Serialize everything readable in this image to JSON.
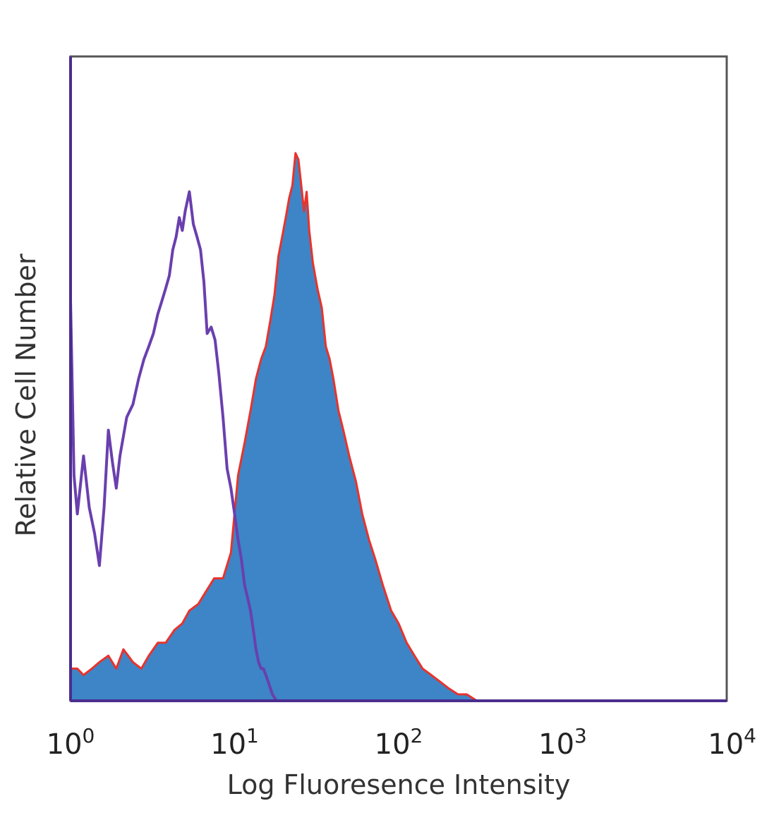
{
  "chart_data": {
    "type": "area",
    "title": "",
    "xlabel": "Log Fluoresence Intensity",
    "ylabel": "Relative Cell Number",
    "x_scale": "log",
    "xlim": [
      1,
      10000
    ],
    "ylim": [
      0,
      100
    ],
    "grid": false,
    "legend": "none",
    "x_ticks": [
      {
        "base": "10",
        "exp": "0"
      },
      {
        "base": "10",
        "exp": "1"
      },
      {
        "base": "10",
        "exp": "2"
      },
      {
        "base": "10",
        "exp": "3"
      },
      {
        "base": "10",
        "exp": "4"
      }
    ],
    "series": [
      {
        "style": "filled",
        "fill_color": "#3d85c6",
        "edge_color": "#e8332c",
        "x": [
          1.0,
          1.1,
          1.2,
          1.35,
          1.5,
          1.7,
          1.9,
          2.1,
          2.4,
          2.7,
          3.0,
          3.4,
          3.8,
          4.3,
          4.8,
          5.3,
          6.0,
          6.7,
          7.5,
          8.5,
          9.5,
          10.5,
          11.5,
          12.5,
          13.5,
          14.5,
          15.5,
          16.5,
          17.5,
          18.5,
          19.5,
          20.5,
          21.5,
          22.5,
          23.5,
          24.5,
          25.5,
          26.5,
          27.5,
          28.5,
          30.0,
          32.0,
          34.0,
          36.0,
          38.0,
          40.0,
          43.0,
          46.0,
          50.0,
          55.0,
          60.0,
          66.0,
          72.0,
          80.0,
          90.0,
          100.0,
          112.0,
          125.0,
          140.0,
          158.0,
          178.0,
          200.0,
          230.0,
          260.0,
          300.0,
          320.0
        ],
        "y": [
          5,
          5,
          4,
          5,
          6,
          7,
          5,
          8,
          6,
          5,
          7,
          9,
          9,
          11,
          12,
          14,
          15,
          17,
          19,
          19,
          23,
          35,
          40,
          45,
          50,
          53,
          55,
          59,
          63,
          69,
          72,
          75,
          78,
          80,
          85,
          84,
          80,
          76,
          79,
          73,
          68,
          64,
          61,
          55,
          53,
          50,
          45,
          42,
          38,
          34,
          29,
          25,
          22,
          18,
          14,
          12,
          9,
          7,
          5,
          4,
          3,
          2,
          1,
          1,
          0,
          0
        ]
      },
      {
        "style": "outline",
        "edge_color": "#6a3fae",
        "x": [
          1.0,
          1.05,
          1.1,
          1.2,
          1.3,
          1.4,
          1.5,
          1.6,
          1.7,
          1.8,
          1.9,
          2.0,
          2.2,
          2.4,
          2.6,
          2.8,
          3.0,
          3.2,
          3.4,
          3.6,
          3.8,
          4.0,
          4.2,
          4.4,
          4.6,
          4.8,
          5.0,
          5.3,
          5.6,
          5.9,
          6.2,
          6.5,
          6.8,
          7.2,
          7.6,
          8.0,
          8.5,
          9.0,
          9.5,
          10.0,
          10.5,
          11.0,
          11.5,
          12.0,
          12.5,
          13.0,
          13.5,
          14.0,
          14.5,
          15.0,
          15.5,
          16.0,
          17.0,
          18.0,
          20.0,
          23.0,
          25.0
        ],
        "y": [
          62,
          35,
          29,
          38,
          30,
          26,
          21,
          30,
          42,
          37,
          33,
          38,
          44,
          46,
          50,
          53,
          55,
          57,
          60,
          62,
          64,
          66,
          70,
          72,
          75,
          73,
          76,
          79,
          74,
          72,
          70,
          65,
          57,
          58,
          56,
          51,
          44,
          36,
          33,
          29,
          25,
          22,
          18,
          16,
          14,
          11,
          8,
          6,
          5,
          5,
          4,
          3,
          1,
          0,
          0,
          0,
          0
        ]
      }
    ]
  }
}
